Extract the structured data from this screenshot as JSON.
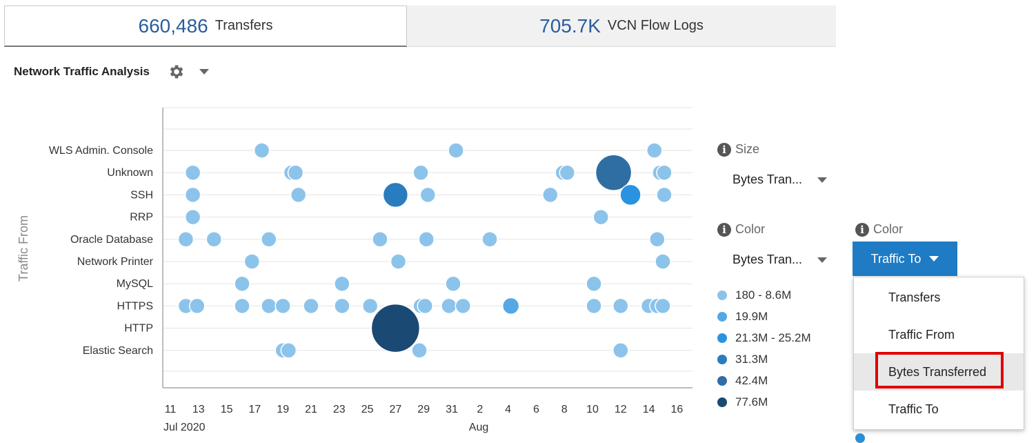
{
  "tabs": [
    {
      "value": "660,486",
      "label": "Transfers",
      "active": true
    },
    {
      "value": "705.7K",
      "label": "VCN Flow Logs",
      "active": false
    }
  ],
  "panel": {
    "title": "Network Traffic Analysis",
    "settings_icon": "gear-icon",
    "menu_icon": "caret-down-icon"
  },
  "size_control": {
    "label": "Size",
    "value": "Bytes Tran..."
  },
  "color_control": {
    "label": "Color",
    "value": "Bytes Tran..."
  },
  "color_control_2": {
    "label": "Color",
    "button_label": "Traffic To"
  },
  "dropdown": {
    "items": [
      "Transfers",
      "Traffic From",
      "Bytes Transferred",
      "Traffic To"
    ],
    "highlighted_index": 2
  },
  "legend": [
    {
      "label": "180 - 8.6M",
      "color": "#8cc3ea"
    },
    {
      "label": "19.9M",
      "color": "#55a8e5"
    },
    {
      "label": "21.3M - 25.2M",
      "color": "#2a93df"
    },
    {
      "label": "31.3M",
      "color": "#2a7cc0"
    },
    {
      "label": "42.4M",
      "color": "#2f6ea3"
    },
    {
      "label": "77.6M",
      "color": "#1a4a73"
    }
  ],
  "chart_data": {
    "type": "scatter",
    "ylabel": "Traffic From",
    "categories": [
      "WLS Admin. Console",
      "Unknown",
      "SSH",
      "RRP",
      "Oracle Database",
      "Network Printer",
      "MySQL",
      "HTTPS",
      "HTTP",
      "Elastic Search"
    ],
    "x_ticks": [
      "11",
      "13",
      "15",
      "17",
      "19",
      "21",
      "23",
      "25",
      "27",
      "29",
      "31",
      "2",
      "4",
      "6",
      "8",
      "10",
      "12",
      "14",
      "16"
    ],
    "x_group_labels": [
      {
        "label": "Jul 2020",
        "at_tick": 0
      },
      {
        "label": "Aug",
        "at_tick": 11
      }
    ],
    "x_unit": "day index (0 = Jul 11 2020)",
    "grid": true,
    "points": [
      {
        "cat": "WLS Admin. Console",
        "day": 6.5,
        "level": 0
      },
      {
        "cat": "WLS Admin. Console",
        "day": 20.3,
        "level": 0
      },
      {
        "cat": "WLS Admin. Console",
        "day": 34.4,
        "level": 0
      },
      {
        "cat": "Unknown",
        "day": 1.6,
        "level": 0
      },
      {
        "cat": "Unknown",
        "day": 8.6,
        "level": 0
      },
      {
        "cat": "Unknown",
        "day": 8.9,
        "level": 0
      },
      {
        "cat": "Unknown",
        "day": 17.8,
        "level": 0
      },
      {
        "cat": "Unknown",
        "day": 27.9,
        "level": 0
      },
      {
        "cat": "Unknown",
        "day": 28.2,
        "level": 0
      },
      {
        "cat": "Unknown",
        "day": 31.0,
        "level": 0
      },
      {
        "cat": "Unknown",
        "day": 31.5,
        "level": 4
      },
      {
        "cat": "Unknown",
        "day": 34.8,
        "level": 0
      },
      {
        "cat": "Unknown",
        "day": 35.1,
        "level": 0
      },
      {
        "cat": "SSH",
        "day": 1.6,
        "level": 0
      },
      {
        "cat": "SSH",
        "day": 9.1,
        "level": 0
      },
      {
        "cat": "SSH",
        "day": 16.0,
        "level": 3
      },
      {
        "cat": "SSH",
        "day": 18.3,
        "level": 0
      },
      {
        "cat": "SSH",
        "day": 27.0,
        "level": 0
      },
      {
        "cat": "SSH",
        "day": 32.7,
        "level": 2
      },
      {
        "cat": "SSH",
        "day": 35.1,
        "level": 0
      },
      {
        "cat": "RRP",
        "day": 1.6,
        "level": 0
      },
      {
        "cat": "RRP",
        "day": 30.6,
        "level": 0
      },
      {
        "cat": "Oracle Database",
        "day": 1.1,
        "level": 0
      },
      {
        "cat": "Oracle Database",
        "day": 3.1,
        "level": 0
      },
      {
        "cat": "Oracle Database",
        "day": 7.0,
        "level": 0
      },
      {
        "cat": "Oracle Database",
        "day": 14.9,
        "level": 0
      },
      {
        "cat": "Oracle Database",
        "day": 18.2,
        "level": 0
      },
      {
        "cat": "Oracle Database",
        "day": 22.7,
        "level": 0
      },
      {
        "cat": "Oracle Database",
        "day": 34.6,
        "level": 0
      },
      {
        "cat": "Network Printer",
        "day": 5.8,
        "level": 0
      },
      {
        "cat": "Network Printer",
        "day": 16.2,
        "level": 0
      },
      {
        "cat": "Network Printer",
        "day": 35.0,
        "level": 0
      },
      {
        "cat": "MySQL",
        "day": 5.1,
        "level": 0
      },
      {
        "cat": "MySQL",
        "day": 12.2,
        "level": 0
      },
      {
        "cat": "MySQL",
        "day": 20.1,
        "level": 0
      },
      {
        "cat": "MySQL",
        "day": 30.1,
        "level": 0
      },
      {
        "cat": "HTTPS",
        "day": 1.1,
        "level": 0
      },
      {
        "cat": "HTTPS",
        "day": 1.9,
        "level": 0
      },
      {
        "cat": "HTTPS",
        "day": 5.1,
        "level": 0
      },
      {
        "cat": "HTTPS",
        "day": 7.0,
        "level": 0
      },
      {
        "cat": "HTTPS",
        "day": 8.0,
        "level": 0
      },
      {
        "cat": "HTTPS",
        "day": 10.0,
        "level": 0
      },
      {
        "cat": "HTTPS",
        "day": 12.2,
        "level": 0
      },
      {
        "cat": "HTTPS",
        "day": 14.2,
        "level": 0
      },
      {
        "cat": "HTTPS",
        "day": 17.8,
        "level": 0
      },
      {
        "cat": "HTTPS",
        "day": 18.1,
        "level": 0
      },
      {
        "cat": "HTTPS",
        "day": 19.8,
        "level": 0
      },
      {
        "cat": "HTTPS",
        "day": 20.8,
        "level": 0
      },
      {
        "cat": "HTTPS",
        "day": 24.2,
        "level": 1
      },
      {
        "cat": "HTTPS",
        "day": 30.1,
        "level": 0
      },
      {
        "cat": "HTTPS",
        "day": 32.0,
        "level": 0
      },
      {
        "cat": "HTTPS",
        "day": 34.0,
        "level": 0
      },
      {
        "cat": "HTTPS",
        "day": 34.6,
        "level": 0
      },
      {
        "cat": "HTTPS",
        "day": 35.0,
        "level": 0
      },
      {
        "cat": "HTTP",
        "day": 16.0,
        "level": 5
      },
      {
        "cat": "Elastic Search",
        "day": 8.0,
        "level": 0
      },
      {
        "cat": "Elastic Search",
        "day": 8.4,
        "level": 0
      },
      {
        "cat": "Elastic Search",
        "day": 17.7,
        "level": 0
      },
      {
        "cat": "Elastic Search",
        "day": 32.0,
        "level": 0
      }
    ]
  }
}
